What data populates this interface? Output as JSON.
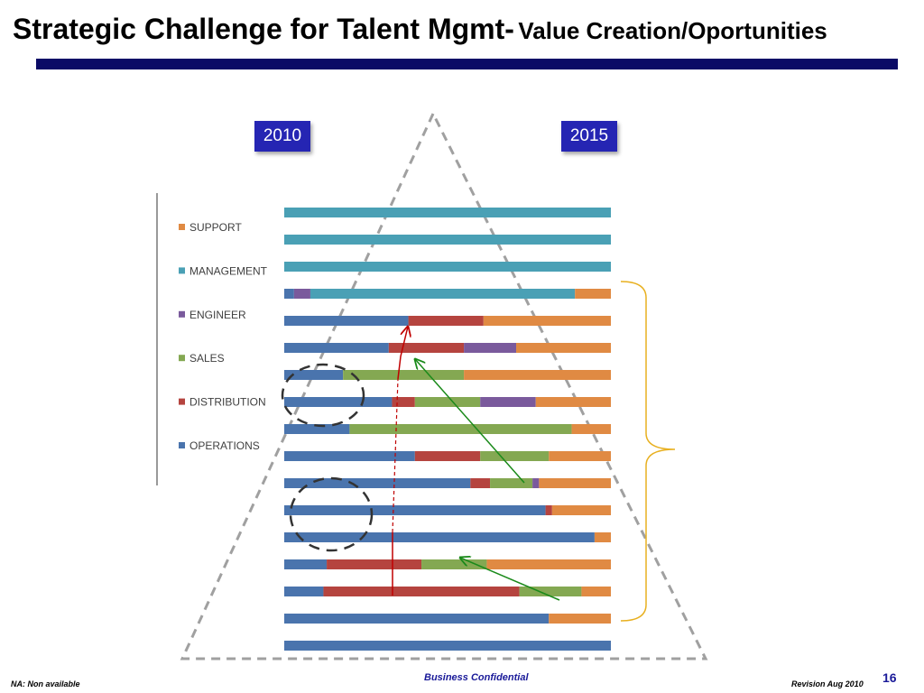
{
  "header": {
    "title": "Strategic Challenge for Talent Mgmt-",
    "subtitle": "Value Creation/Oportunities"
  },
  "year_labels": {
    "left": "2010",
    "right": "2015"
  },
  "footer": {
    "note": "NA: Non available",
    "confidential": "Business Confidential",
    "revision": "Revision Aug 2010",
    "page": "16"
  },
  "colors": {
    "SUPPORT": "#e08a43",
    "MANAGEMENT": "#4aa0b5",
    "ENGINEER": "#7a5a9c",
    "SALES": "#84a852",
    "DISTRIBUTION": "#b5443f",
    "OPERATIONS": "#4a74ad",
    "title_rule": "#0b0b66",
    "year_box": "#2525b3",
    "bracket": "#e8b020"
  },
  "chart_data": {
    "type": "bar",
    "orientation": "horizontal",
    "stacked": true,
    "normalized": true,
    "xlim": [
      0,
      100
    ],
    "legend": [
      "SUPPORT",
      "MANAGEMENT",
      "ENGINEER",
      "SALES",
      "DISTRIBUTION",
      "OPERATIONS"
    ],
    "legend_position": "left",
    "stack_order": [
      "OPERATIONS",
      "DISTRIBUTION",
      "SALES",
      "ENGINEER",
      "MANAGEMENT",
      "SUPPORT"
    ],
    "rows": [
      {
        "OPERATIONS": 0,
        "DISTRIBUTION": 0,
        "SALES": 0,
        "ENGINEER": 0,
        "MANAGEMENT": 100,
        "SUPPORT": 0
      },
      {
        "OPERATIONS": 0,
        "DISTRIBUTION": 0,
        "SALES": 0,
        "ENGINEER": 0,
        "MANAGEMENT": 100,
        "SUPPORT": 0
      },
      {
        "OPERATIONS": 0,
        "DISTRIBUTION": 0,
        "SALES": 0,
        "ENGINEER": 0,
        "MANAGEMENT": 100,
        "SUPPORT": 0
      },
      {
        "OPERATIONS": 3,
        "DISTRIBUTION": 0,
        "SALES": 0,
        "ENGINEER": 5,
        "MANAGEMENT": 81,
        "SUPPORT": 11
      },
      {
        "OPERATIONS": 38,
        "DISTRIBUTION": 23,
        "SALES": 0,
        "ENGINEER": 0,
        "MANAGEMENT": 0,
        "SUPPORT": 39
      },
      {
        "OPERATIONS": 32,
        "DISTRIBUTION": 23,
        "SALES": 0,
        "ENGINEER": 16,
        "MANAGEMENT": 0,
        "SUPPORT": 29
      },
      {
        "OPERATIONS": 18,
        "DISTRIBUTION": 0,
        "SALES": 37,
        "ENGINEER": 0,
        "MANAGEMENT": 0,
        "SUPPORT": 45
      },
      {
        "OPERATIONS": 33,
        "DISTRIBUTION": 7,
        "SALES": 20,
        "ENGINEER": 17,
        "MANAGEMENT": 0,
        "SUPPORT": 23
      },
      {
        "OPERATIONS": 20,
        "DISTRIBUTION": 0,
        "SALES": 68,
        "ENGINEER": 0,
        "MANAGEMENT": 0,
        "SUPPORT": 12
      },
      {
        "OPERATIONS": 40,
        "DISTRIBUTION": 20,
        "SALES": 21,
        "ENGINEER": 0,
        "MANAGEMENT": 0,
        "SUPPORT": 19
      },
      {
        "OPERATIONS": 57,
        "DISTRIBUTION": 6,
        "SALES": 13,
        "ENGINEER": 2,
        "MANAGEMENT": 0,
        "SUPPORT": 22
      },
      {
        "OPERATIONS": 80,
        "DISTRIBUTION": 2,
        "SALES": 0,
        "ENGINEER": 0,
        "MANAGEMENT": 0,
        "SUPPORT": 18
      },
      {
        "OPERATIONS": 95,
        "DISTRIBUTION": 0,
        "SALES": 0,
        "ENGINEER": 0,
        "MANAGEMENT": 0,
        "SUPPORT": 5
      },
      {
        "OPERATIONS": 13,
        "DISTRIBUTION": 29,
        "SALES": 20,
        "ENGINEER": 0,
        "MANAGEMENT": 0,
        "SUPPORT": 38
      },
      {
        "OPERATIONS": 12,
        "DISTRIBUTION": 60,
        "SALES": 19,
        "ENGINEER": 0,
        "MANAGEMENT": 0,
        "SUPPORT": 9
      },
      {
        "OPERATIONS": 81,
        "DISTRIBUTION": 0,
        "SALES": 0,
        "ENGINEER": 0,
        "MANAGEMENT": 0,
        "SUPPORT": 19
      },
      {
        "OPERATIONS": 100,
        "DISTRIBUTION": 0,
        "SALES": 0,
        "ENGINEER": 0,
        "MANAGEMENT": 0,
        "SUPPORT": 0
      }
    ]
  }
}
